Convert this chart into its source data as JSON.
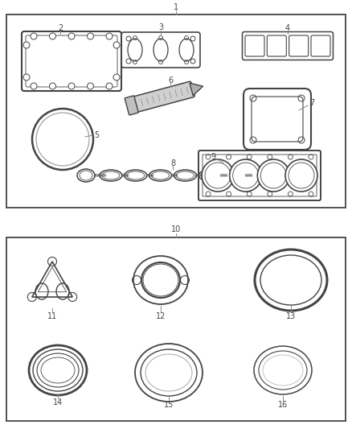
{
  "bg_color": "#ffffff",
  "line_color": "#444444",
  "fig_w": 4.38,
  "fig_h": 5.33,
  "dpi": 100
}
